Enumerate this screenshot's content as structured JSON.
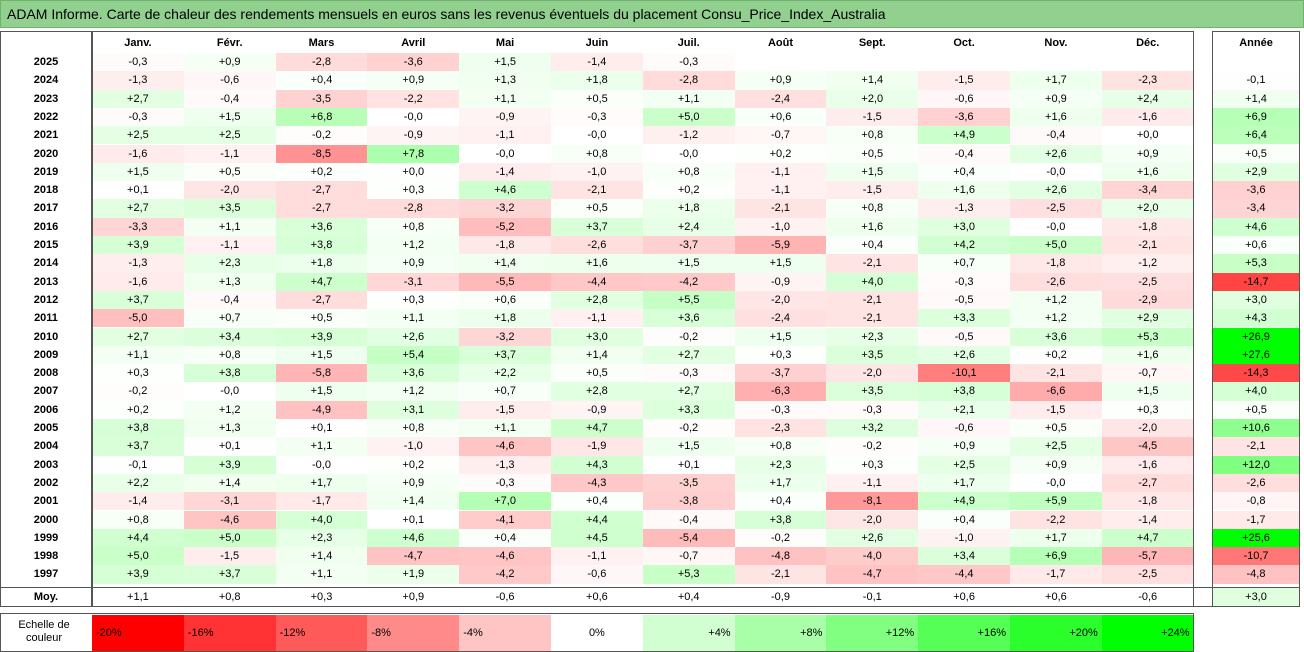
{
  "title": "ADAM Informe. Carte de chaleur des rendements mensuels en euros sans les revenus éventuels du placement Consu_Price_Index_Australia",
  "chart_data": {
    "type": "heatmap",
    "months": [
      "Janv.",
      "Févr.",
      "Mars",
      "Avril",
      "Mai",
      "Juin",
      "Juil.",
      "Août",
      "Sept.",
      "Oct.",
      "Nov.",
      "Déc."
    ],
    "year_header": "Année",
    "rows": [
      {
        "year": "2025",
        "values": [
          "-0,3",
          "+0,9",
          "-2,8",
          "-3,6",
          "+1,5",
          "-1,4",
          "-0,3",
          "",
          "",
          "",
          "",
          ""
        ],
        "annual": ""
      },
      {
        "year": "2024",
        "values": [
          "-1,3",
          "-0,6",
          "+0,4",
          "+0,9",
          "+1,3",
          "+1,8",
          "-2,8",
          "+0,9",
          "+1,4",
          "-1,5",
          "+1,7",
          "-2,3"
        ],
        "annual": "-0,1"
      },
      {
        "year": "2023",
        "values": [
          "+2,7",
          "-0,4",
          "-3,5",
          "-2,2",
          "+1,1",
          "+0,5",
          "+1,1",
          "-2,4",
          "+2,0",
          "-0,6",
          "+0,9",
          "+2,4"
        ],
        "annual": "+1,4"
      },
      {
        "year": "2022",
        "values": [
          "-0,3",
          "+1,5",
          "+6,8",
          "-0,0",
          "-0,9",
          "-0,3",
          "+5,0",
          "+0,6",
          "-1,5",
          "-3,6",
          "+1,6",
          "-1,6"
        ],
        "annual": "+6,9"
      },
      {
        "year": "2021",
        "values": [
          "+2,5",
          "+2,5",
          "-0,2",
          "-0,9",
          "-1,1",
          "-0,0",
          "-1,2",
          "-0,7",
          "+0,8",
          "+4,9",
          "-0,4",
          "+0,0"
        ],
        "annual": "+6,4"
      },
      {
        "year": "2020",
        "values": [
          "-1,6",
          "-1,1",
          "-8,5",
          "+7,8",
          "-0,0",
          "+0,8",
          "-0,0",
          "+0,2",
          "+0,5",
          "-0,4",
          "+2,6",
          "+0,9"
        ],
        "annual": "+0,5"
      },
      {
        "year": "2019",
        "values": [
          "+1,5",
          "+0,5",
          "+0,2",
          "+0,0",
          "-1,4",
          "-1,0",
          "+0,8",
          "-1,1",
          "+1,5",
          "+0,4",
          "-0,0",
          "+1,6"
        ],
        "annual": "+2,9"
      },
      {
        "year": "2018",
        "values": [
          "+0,1",
          "-2,0",
          "-2,7",
          "+0,3",
          "+4,6",
          "-2,1",
          "+0,2",
          "-1,1",
          "-1,5",
          "+1,6",
          "+2,6",
          "-3,4"
        ],
        "annual": "-3,6"
      },
      {
        "year": "2017",
        "values": [
          "+2,7",
          "+3,5",
          "-2,7",
          "-2,8",
          "-3,2",
          "+0,5",
          "+1,8",
          "-2,1",
          "+0,8",
          "-1,3",
          "-2,5",
          "+2,0"
        ],
        "annual": "-3,4"
      },
      {
        "year": "2016",
        "values": [
          "-3,3",
          "+1,1",
          "+3,6",
          "+0,8",
          "-5,2",
          "+3,7",
          "+2,4",
          "-1,0",
          "+1,6",
          "+3,0",
          "-0,0",
          "-1,8"
        ],
        "annual": "+4,6"
      },
      {
        "year": "2015",
        "values": [
          "+3,9",
          "-1,1",
          "+3,8",
          "+1,2",
          "-1,8",
          "-2,6",
          "-3,7",
          "-5,9",
          "+0,4",
          "+4,2",
          "+5,0",
          "-2,1"
        ],
        "annual": "+0,6"
      },
      {
        "year": "2014",
        "values": [
          "-1,3",
          "+2,3",
          "+1,8",
          "+0,9",
          "+1,4",
          "+1,6",
          "+1,5",
          "+1,5",
          "-2,1",
          "+0,7",
          "-1,8",
          "-1,2"
        ],
        "annual": "+5,3"
      },
      {
        "year": "2013",
        "values": [
          "-1,6",
          "+1,3",
          "+4,7",
          "-3,1",
          "-5,5",
          "-4,4",
          "-4,2",
          "-0,9",
          "+4,0",
          "-0,3",
          "-2,6",
          "-2,5"
        ],
        "annual": "-14,7"
      },
      {
        "year": "2012",
        "values": [
          "+3,7",
          "-0,4",
          "-2,7",
          "+0,3",
          "+0,6",
          "+2,8",
          "+5,5",
          "-2,0",
          "-2,1",
          "-0,5",
          "+1,2",
          "-2,9"
        ],
        "annual": "+3,0"
      },
      {
        "year": "2011",
        "values": [
          "-5,0",
          "+0,7",
          "+0,5",
          "+1,1",
          "+1,8",
          "-1,1",
          "+3,6",
          "-2,4",
          "-2,1",
          "+3,3",
          "+1,2",
          "+2,9"
        ],
        "annual": "+4,3"
      },
      {
        "year": "2010",
        "values": [
          "+2,7",
          "+3,4",
          "+3,9",
          "+2,6",
          "-3,2",
          "+3,0",
          "-0,2",
          "+1,5",
          "+2,3",
          "-0,5",
          "+3,6",
          "+5,3"
        ],
        "annual": "+26,9"
      },
      {
        "year": "2009",
        "values": [
          "+1,1",
          "+0,8",
          "+1,5",
          "+5,4",
          "+3,7",
          "+1,4",
          "+2,7",
          "+0,3",
          "+3,5",
          "+2,6",
          "+0,2",
          "+1,6"
        ],
        "annual": "+27,6"
      },
      {
        "year": "2008",
        "values": [
          "+0,3",
          "+3,8",
          "-5,8",
          "+3,6",
          "+2,2",
          "+0,5",
          "-0,3",
          "-3,7",
          "-2,0",
          "-10,1",
          "-2,1",
          "-0,7"
        ],
        "annual": "-14,3"
      },
      {
        "year": "2007",
        "values": [
          "-0,2",
          "-0,0",
          "+1,5",
          "+1,2",
          "+0,7",
          "+2,8",
          "+2,7",
          "-6,3",
          "+3,5",
          "+3,8",
          "-6,6",
          "+1,5"
        ],
        "annual": "+4,0"
      },
      {
        "year": "2006",
        "values": [
          "+0,2",
          "+1,2",
          "-4,9",
          "+3,1",
          "-1,5",
          "-0,9",
          "+3,3",
          "-0,3",
          "-0,3",
          "+2,1",
          "-1,5",
          "+0,3"
        ],
        "annual": "+0,5"
      },
      {
        "year": "2005",
        "values": [
          "+3,8",
          "+1,3",
          "+0,1",
          "+0,8",
          "+1,1",
          "+4,7",
          "-0,2",
          "-2,3",
          "+3,2",
          "-0,6",
          "+0,5",
          "-2,0"
        ],
        "annual": "+10,6"
      },
      {
        "year": "2004",
        "values": [
          "+3,7",
          "+0,1",
          "+1,1",
          "-1,0",
          "-4,6",
          "-1,9",
          "+1,5",
          "+0,8",
          "-0,2",
          "+0,9",
          "+2,5",
          "-4,5"
        ],
        "annual": "-2,1"
      },
      {
        "year": "2003",
        "values": [
          "-0,1",
          "+3,9",
          "-0,0",
          "+0,2",
          "-1,3",
          "+4,3",
          "+0,1",
          "+2,3",
          "+0,3",
          "+2,5",
          "+0,9",
          "-1,6"
        ],
        "annual": "+12,0"
      },
      {
        "year": "2002",
        "values": [
          "+2,2",
          "+1,4",
          "+1,7",
          "+0,9",
          "-0,3",
          "-4,3",
          "-3,5",
          "+1,7",
          "-1,1",
          "+1,7",
          "-0,0",
          "-2,7"
        ],
        "annual": "-2,6"
      },
      {
        "year": "2001",
        "values": [
          "-1,4",
          "-3,1",
          "-1,7",
          "+1,4",
          "+7,0",
          "+0,4",
          "-3,8",
          "+0,4",
          "-8,1",
          "+4,9",
          "+5,9",
          "-1,8"
        ],
        "annual": "-0,8"
      },
      {
        "year": "2000",
        "values": [
          "+0,8",
          "-4,6",
          "+4,0",
          "+0,1",
          "-4,1",
          "+4,4",
          "-0,4",
          "+3,8",
          "-2,0",
          "+0,4",
          "-2,2",
          "-1,4"
        ],
        "annual": "-1,7"
      },
      {
        "year": "1999",
        "values": [
          "+4,4",
          "+5,0",
          "+2,3",
          "+4,6",
          "+0,4",
          "+4,5",
          "-5,4",
          "-0,2",
          "+2,6",
          "-1,0",
          "+1,7",
          "+4,7"
        ],
        "annual": "+25,6"
      },
      {
        "year": "1998",
        "values": [
          "+5,0",
          "-1,5",
          "+1,4",
          "-4,7",
          "-4,6",
          "-1,1",
          "-0,7",
          "-4,8",
          "-4,0",
          "+3,4",
          "+6,9",
          "-5,7"
        ],
        "annual": "-10,7"
      },
      {
        "year": "1997",
        "values": [
          "+3,9",
          "+3,7",
          "+1,1",
          "+1,9",
          "-4,2",
          "-0,6",
          "+5,3",
          "-2,1",
          "-4,7",
          "-4,4",
          "-1,7",
          "-2,5"
        ],
        "annual": "-4,8"
      }
    ],
    "average": {
      "label": "Moy.",
      "values": [
        "+1,1",
        "+0,8",
        "+0,3",
        "+0,9",
        "-0,6",
        "+0,6",
        "+0,4",
        "-0,9",
        "-0,1",
        "+0,6",
        "+0,6",
        "-0,6"
      ],
      "annual": "+3,0"
    },
    "legend": {
      "label": "Echelle de couleur",
      "steps": [
        {
          "label": "-20%",
          "value": -20,
          "color": "#ff0000"
        },
        {
          "label": "-16%",
          "value": -16,
          "color": "#ff3333"
        },
        {
          "label": "-12%",
          "value": -12,
          "color": "#ff5a5a"
        },
        {
          "label": "-8%",
          "value": -8,
          "color": "#ff8a8a"
        },
        {
          "label": "-4%",
          "value": -4,
          "color": "#ffc4c4"
        },
        {
          "label": "0%",
          "value": 0,
          "color": "#ffffff"
        },
        {
          "label": "+4%",
          "value": 4,
          "color": "#d2ffd2"
        },
        {
          "label": "+8%",
          "value": 8,
          "color": "#a8ffa8"
        },
        {
          "label": "+12%",
          "value": 12,
          "color": "#80ff80"
        },
        {
          "label": "+16%",
          "value": 16,
          "color": "#55ff55"
        },
        {
          "label": "+20%",
          "value": 20,
          "color": "#2bff2b"
        },
        {
          "label": "+24%",
          "value": 24,
          "color": "#00ff00"
        }
      ]
    },
    "colors": {
      "title_bar": "#92d08f",
      "negative_max": "#ff0000",
      "positive_max": "#00ff00",
      "neutral": "#ffffff"
    }
  }
}
